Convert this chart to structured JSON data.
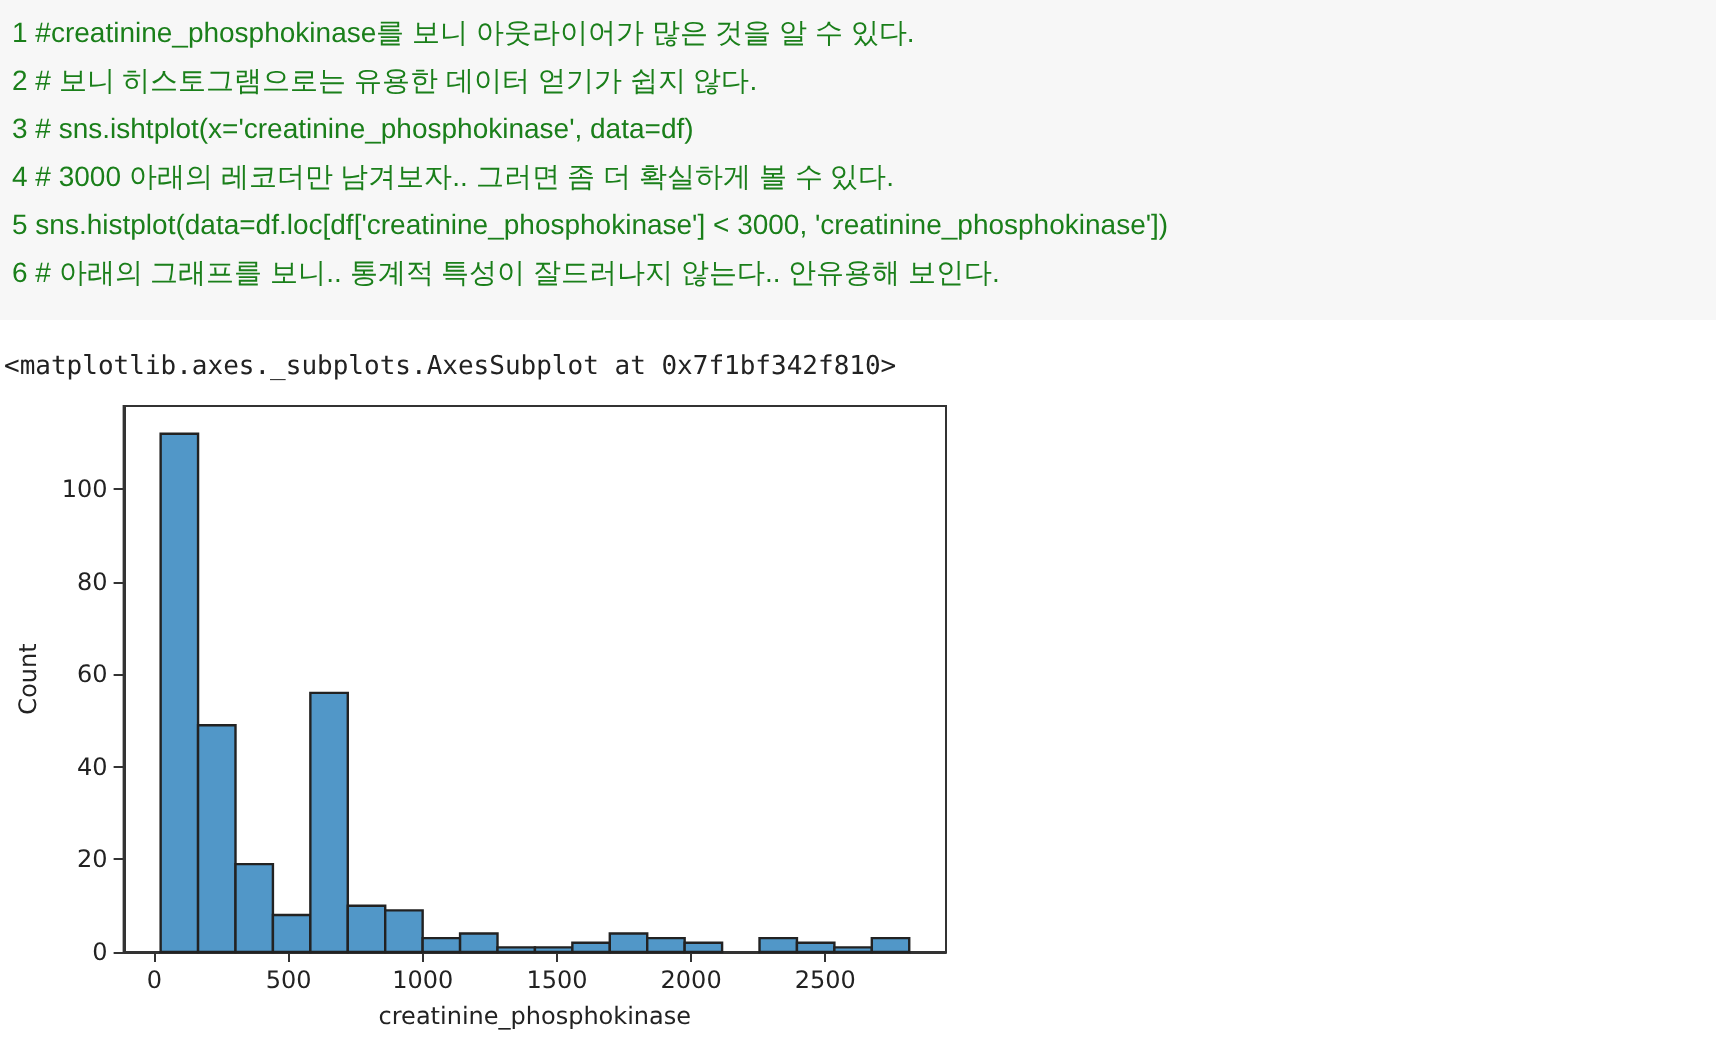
{
  "chart_data": {
    "type": "histogram",
    "xlabel": "creatinine_phosphokinase",
    "ylabel": "Count",
    "bins": [
      23,
      162.5,
      302,
      441.5,
      581,
      720.5,
      860,
      999.5,
      1139,
      1278.5,
      1418,
      1557.5,
      1697,
      1836.5,
      1976,
      2115.5,
      2255,
      2394.5,
      2534,
      2673.5,
      2813
    ],
    "values": [
      112,
      49,
      19,
      8,
      56,
      10,
      9,
      3,
      4,
      1,
      1,
      2,
      4,
      3,
      2,
      0,
      3,
      2,
      1,
      3
    ],
    "color": "#5197c8",
    "xlim": [
      -115,
      2950
    ],
    "xticks": [
      0,
      500,
      1000,
      1500,
      2000,
      2500
    ],
    "ylim": [
      0,
      118
    ],
    "yticks": [
      0,
      20,
      40,
      60,
      80,
      100
    ],
    "grid": false,
    "annotations": [
      "1 #creatinine_phosphokinase를 보니 아웃라이어가 많은 것을 알 수 있다.",
      "2 # 보니 히스토그램으로는 유용한 데이터 얻기가 쉽지 않다.",
      "3 # sns.ishtplot(x='creatinine_phosphokinase', data=df)",
      "4 # 3000 아래의 레코더만 남겨보자.. 그러면 좀 더 확실하게 볼 수 있다.",
      "5 sns.histplot(data=df.loc[df['creatinine_phosphokinase'] < 3000, 'creatinine_phosphokinase'])",
      "6 # 아래의 그래프를 보니.. 통계적 특성이 잘드러나지 않는다.. 안유용해 보인다.",
      "<matplotlib.axes._subplots.AxesSubplot at 0x7f1bf342f810>"
    ]
  }
}
